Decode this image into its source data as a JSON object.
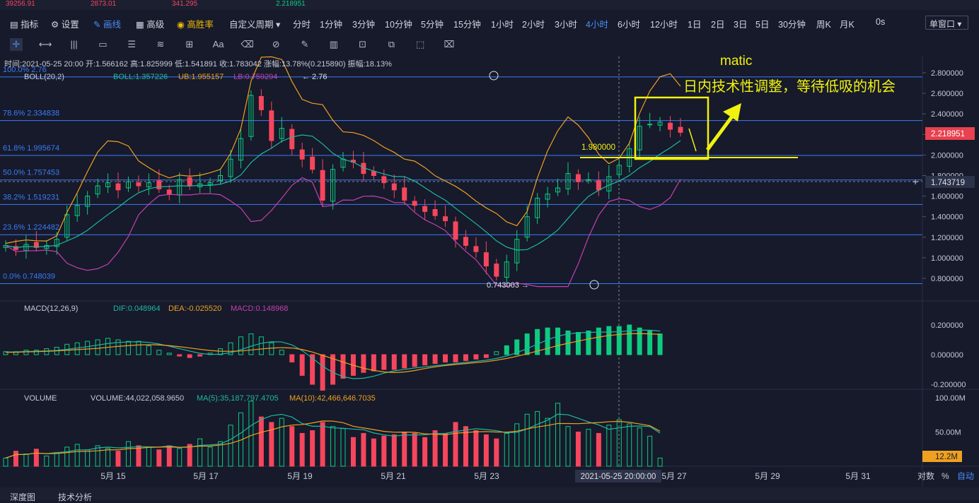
{
  "top_strip": {
    "values": [
      "39256.91",
      "2873.01",
      "341.295",
      "2.218951"
    ]
  },
  "toolbar": {
    "items": [
      {
        "label": "指标",
        "icon": "indicator-icon"
      },
      {
        "label": "设置",
        "icon": "gear-icon"
      },
      {
        "label": "画线",
        "icon": "pen-icon",
        "active": true
      },
      {
        "label": "高级",
        "icon": "chart-icon"
      },
      {
        "label": "高胜率",
        "icon": "coin-icon",
        "gold": true
      },
      {
        "label": "自定义周期"
      },
      {
        "label": "分时"
      },
      {
        "label": "1分钟"
      },
      {
        "label": "3分钟"
      },
      {
        "label": "10分钟"
      },
      {
        "label": "5分钟"
      },
      {
        "label": "15分钟"
      },
      {
        "label": "1小时"
      },
      {
        "label": "2小时"
      },
      {
        "label": "3小时"
      },
      {
        "label": "4小时",
        "active": true
      },
      {
        "label": "6小时"
      },
      {
        "label": "12小时"
      },
      {
        "label": "1日"
      },
      {
        "label": "2日"
      },
      {
        "label": "3日"
      },
      {
        "label": "5日"
      },
      {
        "label": "30分钟"
      },
      {
        "label": "周K"
      },
      {
        "label": "月K"
      },
      {
        "label": "0s"
      }
    ],
    "window_button": "单窗口",
    "drawing_tools": [
      "crosshair-icon",
      "hline-icon",
      "channel-icon",
      "rect-icon",
      "fib-icon",
      "wave-icon",
      "measure-icon",
      "text-icon",
      "eraser-icon",
      "magnet-icon",
      "ruler-icon",
      "barchart-icon",
      "lock-icon",
      "copy-icon",
      "hide-icon",
      "trash-icon"
    ]
  },
  "info_bar": {
    "time": "时间:2021-05-25 20:00",
    "open": "开:1.566162",
    "high": "高:1.825999",
    "low": "低:1.541891",
    "close": "收:1.783042",
    "change": "涨幅:13.78%(0.215890)",
    "amplitude": "振幅:18.13%"
  },
  "boll": {
    "name": "BOLL(20,2)",
    "boll": "BOLL:1.357226",
    "ub": "UB:1.955157",
    "lb": "LB:0.759294"
  },
  "macd": {
    "name": "MACD(12,26,9)",
    "dif": "DIF:0.048964",
    "dea": "DEA:-0.025520",
    "macd": "MACD:0.148968"
  },
  "volume": {
    "name": "VOLUME",
    "vol": "VOLUME:44,022,058.9650",
    "ma5": "MA(5):35,187,797.4705",
    "ma10": "MA(10):42,466,646.7035"
  },
  "fib_levels": [
    {
      "label": "100.0% 2.76",
      "value": 2.76
    },
    {
      "label": "78.6% 2.334838",
      "value": 2.334838
    },
    {
      "label": "61.8% 1.995674",
      "value": 1.995674
    },
    {
      "label": "50.0% 1.757453",
      "value": 1.757453
    },
    {
      "label": "38.2% 1.519231",
      "value": 1.519231
    },
    {
      "label": "23.6% 1.224482",
      "value": 1.224482
    },
    {
      "label": "0.0% 0.748039",
      "value": 0.748039
    }
  ],
  "annotations": {
    "symbol": "matic",
    "comment": "日内技术性调整，等待低吸的机会",
    "level_label": "1.980000",
    "high_marker": "← 2.76",
    "low_marker": "0.743003 →"
  },
  "price_axis": {
    "ticks": [
      "2.800000",
      "2.600000",
      "2.400000",
      "2.200000",
      "2.000000",
      "1.800000",
      "1.600000",
      "1.400000",
      "1.200000",
      "1.000000",
      "0.800000"
    ],
    "current": "2.218951",
    "crosshair": "1.743719"
  },
  "macd_axis": {
    "ticks": [
      "0.200000",
      "0.000000",
      "-0.200000"
    ]
  },
  "volume_axis": {
    "ticks": [
      "100.00M",
      "50.00M"
    ],
    "current": "12.2M"
  },
  "date_axis": {
    "ticks": [
      "5月 15",
      "5月 17",
      "5月 19",
      "5月 21",
      "5月 23",
      "5月 27",
      "5月 29",
      "5月 31"
    ],
    "crosshair_label": "2021-05-25 20:00:00",
    "controls": [
      "对数",
      "%",
      "自动"
    ]
  },
  "bottom_tabs": [
    "深度图",
    "技术分析"
  ],
  "colors": {
    "up": "#0ecb81",
    "down": "#f6465d",
    "boll": "#f0a020",
    "ub_lb": "#c63fb0",
    "mid": "#1fb8a0",
    "fib": "#3d7bf5",
    "annot": "#f2f20f"
  },
  "chart_data": {
    "type": "candlestick",
    "interval": "4小时",
    "ylim": [
      0.7,
      2.85
    ],
    "x_dates": [
      "5月 15",
      "5月 17",
      "5月 19",
      "5月 21",
      "5月 23",
      "5月 25",
      "5月 27"
    ],
    "candles_close_approx": [
      1.12,
      1.08,
      1.13,
      1.1,
      1.12,
      1.18,
      1.42,
      1.51,
      1.6,
      1.7,
      1.73,
      1.66,
      1.74,
      1.7,
      1.73,
      1.67,
      1.62,
      1.76,
      1.7,
      1.72,
      1.73,
      1.8,
      1.96,
      2.16,
      2.58,
      2.44,
      2.14,
      2.26,
      2.06,
      1.96,
      1.86,
      1.56,
      1.86,
      1.96,
      1.93,
      1.82,
      1.8,
      1.73,
      1.66,
      1.56,
      1.51,
      1.45,
      1.41,
      1.36,
      1.18,
      1.12,
      1.06,
      0.92,
      0.82,
      0.96,
      1.18,
      1.4,
      1.58,
      1.62,
      1.68,
      1.82,
      1.74,
      1.76,
      1.66,
      1.79,
      1.9,
      2.06,
      2.28,
      2.3,
      2.32,
      2.25,
      2.22
    ],
    "macd_hist_approx": [
      0.02,
      0.02,
      0.03,
      0.03,
      0.04,
      0.05,
      0.07,
      0.08,
      0.09,
      0.1,
      0.11,
      0.1,
      0.09,
      0.09,
      0.06,
      0.03,
      0.01,
      -0.01,
      -0.02,
      -0.01,
      0.01,
      0.04,
      0.08,
      0.12,
      0.14,
      0.12,
      0.08,
      0.03,
      -0.05,
      -0.14,
      -0.2,
      -0.24,
      -0.2,
      -0.16,
      -0.14,
      -0.12,
      -0.11,
      -0.1,
      -0.1,
      -0.09,
      -0.08,
      -0.07,
      -0.06,
      -0.05,
      -0.05,
      -0.04,
      -0.03,
      -0.02,
      0.02,
      0.06,
      0.1,
      0.14,
      0.17,
      0.18,
      0.18,
      0.16,
      0.15,
      0.16,
      0.18,
      0.19,
      0.19,
      0.2,
      0.18,
      0.16,
      0.14
    ],
    "volume_approx_M": [
      12,
      22,
      18,
      25,
      15,
      20,
      28,
      32,
      24,
      30,
      26,
      22,
      36,
      30,
      28,
      24,
      30,
      26,
      32,
      40,
      28,
      36,
      60,
      78,
      95,
      72,
      64,
      70,
      58,
      48,
      52,
      64,
      58,
      55,
      42,
      48,
      40,
      44,
      46,
      50,
      48,
      42,
      52,
      48,
      64,
      58,
      52,
      46,
      40,
      48,
      62,
      76,
      80,
      70,
      92,
      58,
      50,
      54,
      48,
      60,
      68,
      62,
      56,
      44,
      12
    ]
  }
}
